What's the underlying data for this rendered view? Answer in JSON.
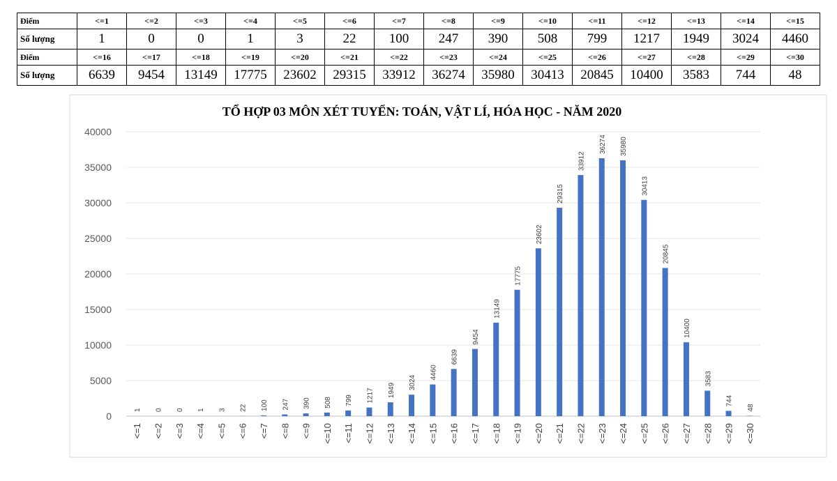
{
  "table": {
    "row_label_score": "Điểm",
    "row_label_count": "Số lượng"
  },
  "chart_data": {
    "type": "bar",
    "title": "TỔ HỢP 03 MÔN XÉT TUYỂN: TOÁN, VẬT LÍ, HÓA HỌC - NĂM 2020",
    "xlabel": "",
    "ylabel": "",
    "categories": [
      "<=1",
      "<=2",
      "<=3",
      "<=4",
      "<=5",
      "<=6",
      "<=7",
      "<=8",
      "<=9",
      "<=10",
      "<=11",
      "<=12",
      "<=13",
      "<=14",
      "<=15",
      "<=16",
      "<=17",
      "<=18",
      "<=19",
      "<=20",
      "<=21",
      "<=22",
      "<=23",
      "<=24",
      "<=25",
      "<=26",
      "<=27",
      "<=28",
      "<=29",
      "<=30"
    ],
    "values": [
      1,
      0,
      0,
      1,
      3,
      22,
      100,
      247,
      390,
      508,
      799,
      1217,
      1949,
      3024,
      4460,
      6639,
      9454,
      13149,
      17775,
      23602,
      29315,
      33912,
      36274,
      35980,
      30413,
      20845,
      10400,
      3583,
      744,
      48
    ],
    "ylim": [
      0,
      40000
    ],
    "yticks": [
      0,
      5000,
      10000,
      15000,
      20000,
      25000,
      30000,
      35000,
      40000
    ],
    "grid": true,
    "legend": "none",
    "bar_color": "#4472C4",
    "data_labels": true
  }
}
